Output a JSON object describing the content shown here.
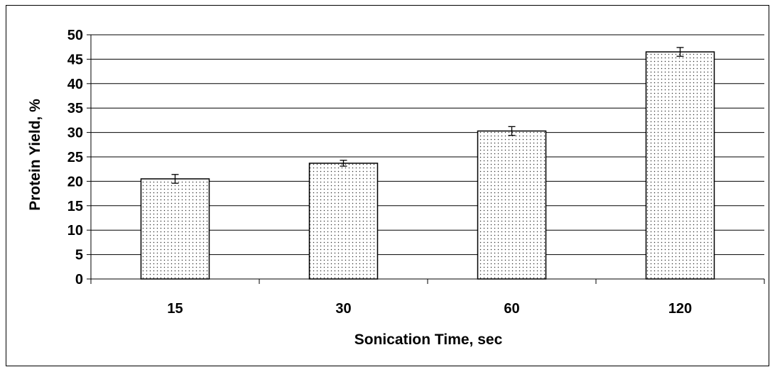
{
  "chart_data": {
    "type": "bar",
    "categories": [
      "15",
      "30",
      "60",
      "120"
    ],
    "values": [
      20.5,
      23.7,
      30.3,
      46.5
    ],
    "errors": [
      0.9,
      0.6,
      0.9,
      0.9
    ],
    "xlabel": "Sonication Time, sec",
    "ylabel": "Protein Yield, %",
    "ylim": [
      0,
      50
    ],
    "ytick_step": 5,
    "grid": true,
    "legend": "none",
    "colors": {
      "bar_fill": "#ffffff",
      "bar_dots": "#333333",
      "gridline": "#000000"
    }
  }
}
